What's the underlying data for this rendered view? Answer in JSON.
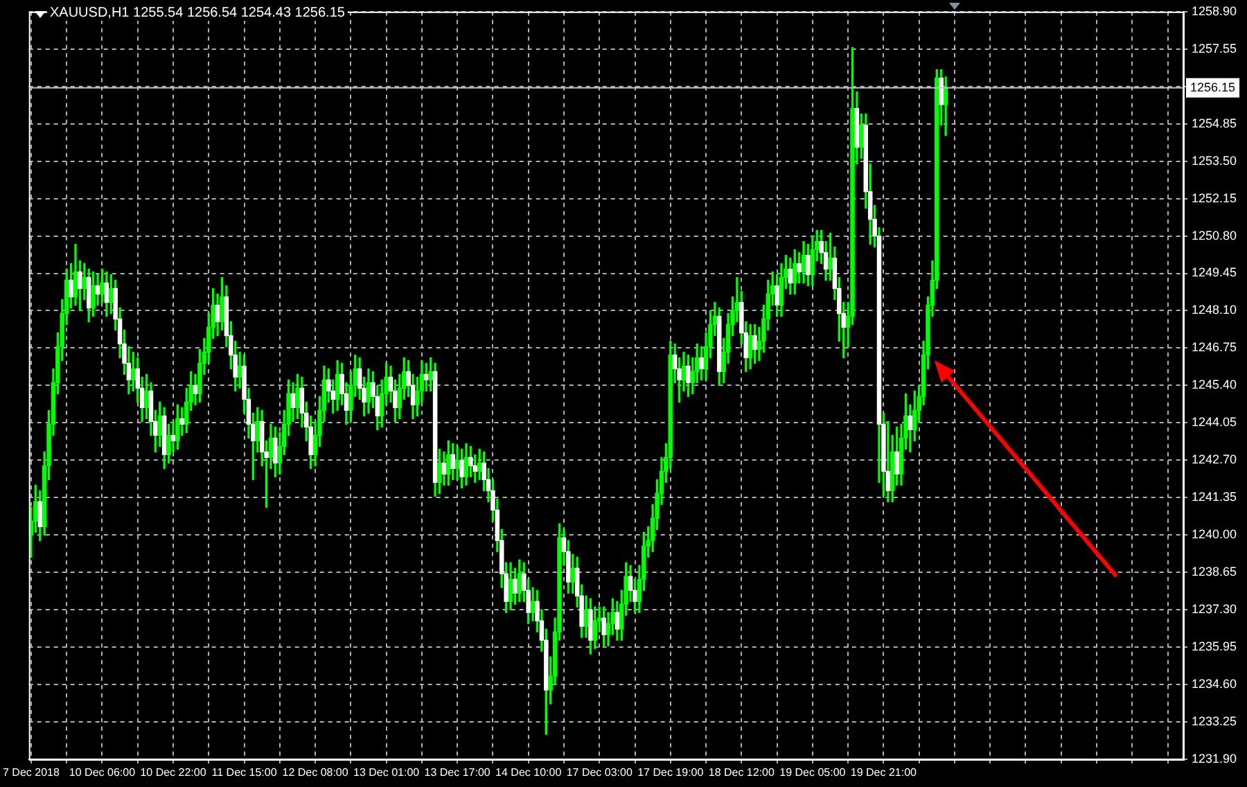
{
  "chart_data": {
    "type": "candlestick",
    "title": "XAUUSD,H1 1255.54 1256.54 1254.43 1256.15",
    "color": "#00ff00",
    "grid": true,
    "categories": [
      "7 Dec 2018",
      null,
      null,
      null,
      null,
      null,
      null,
      null,
      null,
      null,
      null,
      null,
      null,
      null,
      null,
      null,
      "10 Dec 06:00",
      null,
      null,
      null,
      null,
      null,
      null,
      null,
      null,
      null,
      null,
      null,
      null,
      null,
      null,
      null,
      "10 Dec 22:00",
      null,
      null,
      null,
      null,
      null,
      null,
      null,
      null,
      null,
      null,
      null,
      null,
      null,
      null,
      null,
      "11 Dec 15:00",
      null,
      null,
      null,
      null,
      null,
      null,
      null,
      null,
      null,
      null,
      null,
      null,
      null,
      null,
      null,
      "12 Dec 08:00",
      null,
      null,
      null,
      null,
      null,
      null,
      null,
      null,
      null,
      null,
      null,
      null,
      null,
      null,
      null,
      "13 Dec 01:00",
      null,
      null,
      null,
      null,
      null,
      null,
      null,
      null,
      null,
      null,
      null,
      null,
      null,
      null,
      null,
      "13 Dec 17:00",
      null,
      null,
      null,
      null,
      null,
      null,
      null,
      null,
      null,
      null,
      null,
      null,
      null,
      null,
      null,
      "14 Dec 10:00",
      null,
      null,
      null,
      null,
      null,
      null,
      null,
      null,
      null,
      null,
      null,
      null,
      null,
      null,
      null,
      "17 Dec 03:00",
      null,
      null,
      null,
      null,
      null,
      null,
      null,
      null,
      null,
      null,
      null,
      null,
      null,
      null,
      null,
      "17 Dec 19:00",
      null,
      null,
      null,
      null,
      null,
      null,
      null,
      null,
      null,
      null,
      null,
      null,
      null,
      null,
      null,
      "18 Dec 12:00",
      null,
      null,
      null,
      null,
      null,
      null,
      null,
      null,
      null,
      null,
      null,
      null,
      null,
      null,
      null,
      "19 Dec 05:00",
      null,
      null,
      null,
      null,
      null,
      null,
      null,
      null,
      null,
      null,
      null,
      null,
      null,
      null,
      null,
      "19 Dec 21:00",
      null,
      null,
      null,
      null,
      null,
      null,
      null,
      null,
      null,
      null,
      null,
      null,
      null,
      null,
      null,
      null,
      null,
      null,
      null,
      null,
      null,
      null,
      null,
      null,
      null,
      null,
      null,
      null,
      null,
      null,
      null,
      null,
      null,
      null,
      null,
      null,
      null,
      null,
      null,
      null,
      null,
      null,
      null,
      null,
      null,
      null,
      null,
      null,
      null,
      null,
      null,
      null,
      null,
      null,
      null,
      null,
      null,
      null,
      null,
      null,
      null,
      null,
      null,
      null,
      null,
      null,
      null
    ],
    "ohlc": [
      [
        1240.0,
        1241.0,
        1239.2,
        1240.5
      ],
      [
        1240.5,
        1241.8,
        1240.1,
        1241.2
      ],
      [
        1241.2,
        1241.6,
        1239.8,
        1240.3
      ],
      [
        1240.3,
        1243.0,
        1240.0,
        1242.5
      ],
      [
        1242.5,
        1244.5,
        1242.0,
        1244.0
      ],
      [
        1244.0,
        1246.0,
        1243.6,
        1245.5
      ],
      [
        1245.5,
        1247.3,
        1245.1,
        1246.8
      ],
      [
        1246.8,
        1248.5,
        1246.3,
        1248.0
      ],
      [
        1248.0,
        1249.6,
        1247.6,
        1249.2
      ],
      [
        1249.2,
        1249.8,
        1248.2,
        1248.6
      ],
      [
        1248.6,
        1250.5,
        1248.3,
        1249.5
      ],
      [
        1249.5,
        1249.9,
        1248.1,
        1248.9
      ],
      [
        1248.9,
        1249.8,
        1248.5,
        1249.3
      ],
      [
        1249.3,
        1249.6,
        1247.7,
        1248.2
      ],
      [
        1248.2,
        1249.5,
        1247.9,
        1249.0
      ],
      [
        1249.0,
        1249.4,
        1248.3,
        1248.7
      ],
      [
        1248.7,
        1249.6,
        1248.4,
        1249.1
      ],
      [
        1249.1,
        1249.5,
        1247.9,
        1248.4
      ],
      [
        1248.4,
        1249.4,
        1248.0,
        1248.9
      ],
      [
        1248.9,
        1249.2,
        1247.4,
        1247.8
      ],
      [
        1247.8,
        1248.2,
        1246.4,
        1246.9
      ],
      [
        1246.9,
        1247.4,
        1245.8,
        1246.2
      ],
      [
        1246.2,
        1246.8,
        1245.1,
        1245.6
      ],
      [
        1245.6,
        1246.6,
        1245.2,
        1246.0
      ],
      [
        1246.0,
        1246.4,
        1244.8,
        1245.3
      ],
      [
        1245.3,
        1245.7,
        1244.1,
        1244.6
      ],
      [
        1244.6,
        1245.8,
        1244.2,
        1245.2
      ],
      [
        1245.2,
        1245.5,
        1243.6,
        1244.1
      ],
      [
        1244.1,
        1244.5,
        1243.0,
        1243.6
      ],
      [
        1243.6,
        1244.8,
        1243.2,
        1244.3
      ],
      [
        1244.3,
        1244.6,
        1242.4,
        1242.9
      ],
      [
        1242.9,
        1244.0,
        1242.6,
        1243.6
      ],
      [
        1243.6,
        1244.1,
        1243.0,
        1243.4
      ],
      [
        1243.4,
        1244.7,
        1243.1,
        1244.2
      ],
      [
        1244.2,
        1244.6,
        1243.6,
        1244.0
      ],
      [
        1244.0,
        1245.3,
        1243.7,
        1244.8
      ],
      [
        1244.8,
        1245.9,
        1244.5,
        1245.4
      ],
      [
        1245.4,
        1245.8,
        1244.7,
        1245.1
      ],
      [
        1245.1,
        1246.7,
        1244.8,
        1246.2
      ],
      [
        1246.2,
        1247.1,
        1245.8,
        1246.6
      ],
      [
        1246.6,
        1248.0,
        1246.2,
        1247.5
      ],
      [
        1247.5,
        1248.9,
        1247.1,
        1248.3
      ],
      [
        1248.3,
        1248.7,
        1247.2,
        1247.7
      ],
      [
        1247.7,
        1249.3,
        1247.4,
        1248.6
      ],
      [
        1248.6,
        1249.0,
        1246.8,
        1247.2
      ],
      [
        1247.2,
        1247.7,
        1246.0,
        1246.5
      ],
      [
        1246.5,
        1247.0,
        1245.2,
        1245.7
      ],
      [
        1245.7,
        1246.6,
        1245.3,
        1246.1
      ],
      [
        1246.1,
        1246.5,
        1244.4,
        1244.9
      ],
      [
        1244.9,
        1245.3,
        1243.5,
        1244.0
      ],
      [
        1244.0,
        1244.4,
        1242.0,
        1243.4
      ],
      [
        1243.4,
        1244.6,
        1243.0,
        1244.1
      ],
      [
        1244.1,
        1244.5,
        1242.5,
        1243.0
      ],
      [
        1243.0,
        1243.4,
        1241.0,
        1242.8
      ],
      [
        1242.8,
        1244.0,
        1242.4,
        1243.5
      ],
      [
        1243.5,
        1243.9,
        1242.1,
        1242.6
      ],
      [
        1242.6,
        1243.7,
        1242.2,
        1243.2
      ],
      [
        1243.2,
        1244.5,
        1242.9,
        1244.0
      ],
      [
        1244.0,
        1245.6,
        1243.6,
        1245.1
      ],
      [
        1245.1,
        1245.5,
        1244.1,
        1244.6
      ],
      [
        1244.6,
        1245.8,
        1244.2,
        1245.3
      ],
      [
        1245.3,
        1245.7,
        1243.9,
        1244.4
      ],
      [
        1244.4,
        1244.8,
        1243.4,
        1243.9
      ],
      [
        1243.9,
        1244.3,
        1242.4,
        1242.9
      ],
      [
        1242.9,
        1244.1,
        1242.5,
        1243.6
      ],
      [
        1243.6,
        1245.0,
        1243.2,
        1244.5
      ],
      [
        1244.5,
        1246.1,
        1244.1,
        1245.6
      ],
      [
        1245.6,
        1246.0,
        1244.8,
        1245.2
      ],
      [
        1245.2,
        1245.6,
        1244.4,
        1244.9
      ],
      [
        1244.9,
        1246.3,
        1244.5,
        1245.8
      ],
      [
        1245.8,
        1246.2,
        1244.7,
        1245.1
      ],
      [
        1245.1,
        1245.5,
        1244.0,
        1244.5
      ],
      [
        1244.5,
        1245.9,
        1244.1,
        1245.4
      ],
      [
        1245.4,
        1246.5,
        1245.0,
        1246.0
      ],
      [
        1246.0,
        1246.4,
        1244.9,
        1245.3
      ],
      [
        1245.3,
        1245.7,
        1244.3,
        1244.8
      ],
      [
        1244.8,
        1246.0,
        1244.4,
        1245.5
      ],
      [
        1245.5,
        1245.9,
        1244.6,
        1245.0
      ],
      [
        1245.0,
        1245.4,
        1243.8,
        1244.3
      ],
      [
        1244.3,
        1245.6,
        1243.9,
        1245.1
      ],
      [
        1245.1,
        1246.2,
        1244.7,
        1245.7
      ],
      [
        1245.7,
        1246.1,
        1244.8,
        1245.2
      ],
      [
        1245.2,
        1245.6,
        1244.1,
        1244.6
      ],
      [
        1244.6,
        1245.8,
        1244.2,
        1245.3
      ],
      [
        1245.3,
        1246.4,
        1244.9,
        1245.9
      ],
      [
        1245.9,
        1246.3,
        1245.0,
        1245.4
      ],
      [
        1245.4,
        1245.8,
        1244.2,
        1244.7
      ],
      [
        1244.7,
        1245.7,
        1244.3,
        1245.2
      ],
      [
        1245.2,
        1246.3,
        1244.8,
        1245.8
      ],
      [
        1245.8,
        1246.2,
        1245.2,
        1245.6
      ],
      [
        1245.6,
        1246.4,
        1245.2,
        1245.9
      ],
      [
        1245.9,
        1246.2,
        1241.4,
        1241.9
      ],
      [
        1241.9,
        1243.1,
        1241.5,
        1242.6
      ],
      [
        1242.6,
        1243.0,
        1241.8,
        1242.2
      ],
      [
        1242.2,
        1243.4,
        1241.8,
        1242.9
      ],
      [
        1242.9,
        1243.3,
        1242.0,
        1242.4
      ],
      [
        1242.4,
        1243.2,
        1242.0,
        1242.7
      ],
      [
        1242.7,
        1243.1,
        1241.7,
        1242.1
      ],
      [
        1242.1,
        1243.3,
        1241.8,
        1242.8
      ],
      [
        1242.8,
        1243.2,
        1242.1,
        1242.5
      ],
      [
        1242.5,
        1242.9,
        1241.9,
        1242.3
      ],
      [
        1242.3,
        1243.1,
        1242.0,
        1242.6
      ],
      [
        1242.6,
        1243.0,
        1241.6,
        1242.0
      ],
      [
        1242.0,
        1242.4,
        1241.2,
        1241.6
      ],
      [
        1241.6,
        1242.0,
        1240.5,
        1240.9
      ],
      [
        1240.9,
        1241.3,
        1239.4,
        1239.8
      ],
      [
        1239.8,
        1240.2,
        1238.1,
        1238.6
      ],
      [
        1238.6,
        1239.0,
        1237.2,
        1237.6
      ],
      [
        1237.6,
        1239.0,
        1237.3,
        1238.4
      ],
      [
        1238.4,
        1238.8,
        1237.5,
        1237.9
      ],
      [
        1237.9,
        1239.1,
        1237.6,
        1238.6
      ],
      [
        1238.6,
        1239.0,
        1237.6,
        1238.0
      ],
      [
        1238.0,
        1238.4,
        1236.8,
        1237.2
      ],
      [
        1237.2,
        1238.1,
        1236.9,
        1237.6
      ],
      [
        1237.6,
        1238.0,
        1236.5,
        1236.9
      ],
      [
        1236.9,
        1237.3,
        1235.8,
        1236.2
      ],
      [
        1236.2,
        1236.6,
        1232.8,
        1234.4
      ],
      [
        1234.4,
        1235.6,
        1233.9,
        1234.9
      ],
      [
        1234.9,
        1237.0,
        1234.6,
        1236.5
      ],
      [
        1236.5,
        1240.4,
        1236.2,
        1239.9
      ],
      [
        1239.9,
        1240.2,
        1238.9,
        1239.4
      ],
      [
        1239.4,
        1239.8,
        1237.9,
        1238.3
      ],
      [
        1238.3,
        1239.3,
        1237.9,
        1238.8
      ],
      [
        1238.8,
        1239.2,
        1237.4,
        1237.8
      ],
      [
        1237.8,
        1238.2,
        1236.3,
        1236.7
      ],
      [
        1236.7,
        1237.8,
        1236.3,
        1237.3
      ],
      [
        1237.3,
        1237.7,
        1235.7,
        1236.2
      ],
      [
        1236.2,
        1237.4,
        1235.9,
        1236.9
      ],
      [
        1236.9,
        1237.4,
        1236.5,
        1237.0
      ],
      [
        1237.0,
        1237.4,
        1236.0,
        1236.4
      ],
      [
        1236.4,
        1237.2,
        1236.0,
        1236.8
      ],
      [
        1236.8,
        1237.7,
        1236.4,
        1237.2
      ],
      [
        1237.2,
        1237.6,
        1236.2,
        1236.6
      ],
      [
        1236.6,
        1238.0,
        1236.2,
        1237.5
      ],
      [
        1237.5,
        1239.0,
        1237.1,
        1238.5
      ],
      [
        1238.5,
        1238.9,
        1237.6,
        1238.0
      ],
      [
        1238.0,
        1238.4,
        1237.2,
        1237.6
      ],
      [
        1237.6,
        1238.9,
        1237.2,
        1238.4
      ],
      [
        1238.4,
        1240.1,
        1238.0,
        1239.6
      ],
      [
        1239.6,
        1240.3,
        1239.2,
        1239.8
      ],
      [
        1239.8,
        1241.1,
        1239.4,
        1240.6
      ],
      [
        1240.6,
        1242.0,
        1240.2,
        1241.5
      ],
      [
        1241.5,
        1242.8,
        1241.1,
        1242.3
      ],
      [
        1242.3,
        1243.3,
        1241.9,
        1242.8
      ],
      [
        1242.8,
        1247.0,
        1242.4,
        1246.5
      ],
      [
        1246.5,
        1246.9,
        1245.5,
        1246.0
      ],
      [
        1246.0,
        1246.4,
        1244.8,
        1245.6
      ],
      [
        1245.6,
        1246.6,
        1245.2,
        1246.1
      ],
      [
        1246.1,
        1246.5,
        1245.0,
        1245.5
      ],
      [
        1245.5,
        1246.4,
        1245.1,
        1245.9
      ],
      [
        1245.9,
        1246.9,
        1245.5,
        1246.4
      ],
      [
        1246.4,
        1246.8,
        1245.6,
        1246.0
      ],
      [
        1246.0,
        1247.3,
        1245.6,
        1246.8
      ],
      [
        1246.8,
        1248.1,
        1246.4,
        1247.6
      ],
      [
        1247.6,
        1248.4,
        1247.2,
        1247.9
      ],
      [
        1247.9,
        1248.2,
        1245.4,
        1245.9
      ],
      [
        1245.9,
        1247.1,
        1245.5,
        1246.6
      ],
      [
        1246.6,
        1248.0,
        1246.2,
        1247.6
      ],
      [
        1247.6,
        1248.6,
        1247.2,
        1248.1
      ],
      [
        1248.1,
        1249.3,
        1247.7,
        1248.4
      ],
      [
        1248.4,
        1248.8,
        1246.9,
        1247.3
      ],
      [
        1247.3,
        1247.7,
        1245.9,
        1246.4
      ],
      [
        1246.4,
        1247.6,
        1246.0,
        1247.2
      ],
      [
        1247.2,
        1247.6,
        1246.2,
        1246.7
      ],
      [
        1246.7,
        1247.5,
        1246.3,
        1247.0
      ],
      [
        1247.0,
        1248.3,
        1246.6,
        1247.8
      ],
      [
        1247.8,
        1249.2,
        1247.4,
        1248.7
      ],
      [
        1248.7,
        1249.5,
        1248.3,
        1249.0
      ],
      [
        1249.0,
        1249.4,
        1247.9,
        1248.3
      ],
      [
        1248.3,
        1249.8,
        1247.9,
        1249.3
      ],
      [
        1249.3,
        1250.1,
        1248.9,
        1249.6
      ],
      [
        1249.6,
        1250.0,
        1248.7,
        1249.1
      ],
      [
        1249.1,
        1250.3,
        1248.7,
        1249.8
      ],
      [
        1249.8,
        1250.2,
        1249.1,
        1249.5
      ],
      [
        1249.5,
        1250.6,
        1249.1,
        1250.1
      ],
      [
        1250.1,
        1250.5,
        1249.0,
        1249.4
      ],
      [
        1249.4,
        1250.8,
        1249.0,
        1250.3
      ],
      [
        1250.3,
        1251.0,
        1249.9,
        1250.6
      ],
      [
        1250.6,
        1251.0,
        1249.8,
        1250.2
      ],
      [
        1250.2,
        1250.6,
        1249.2,
        1249.6
      ],
      [
        1249.6,
        1250.9,
        1249.2,
        1250.0
      ],
      [
        1250.0,
        1250.4,
        1248.5,
        1248.9
      ],
      [
        1248.9,
        1249.3,
        1247.0,
        1248.0
      ],
      [
        1248.0,
        1248.4,
        1246.4,
        1247.5
      ],
      [
        1247.5,
        1248.4,
        1246.8,
        1247.9
      ],
      [
        1247.9,
        1257.6,
        1247.6,
        1255.4
      ],
      [
        1255.4,
        1256.0,
        1253.4,
        1254.0
      ],
      [
        1254.0,
        1255.2,
        1253.6,
        1254.8
      ],
      [
        1254.8,
        1255.2,
        1251.8,
        1252.4
      ],
      [
        1252.4,
        1253.4,
        1250.5,
        1251.4
      ],
      [
        1251.4,
        1251.9,
        1250.4,
        1250.8
      ],
      [
        1250.8,
        1251.1,
        1241.9,
        1244.0
      ],
      [
        1244.0,
        1244.4,
        1241.4,
        1242.3
      ],
      [
        1242.3,
        1244.1,
        1241.2,
        1241.6
      ],
      [
        1241.6,
        1243.6,
        1241.2,
        1243.0
      ],
      [
        1243.0,
        1243.9,
        1241.8,
        1242.2
      ],
      [
        1242.2,
        1244.0,
        1241.8,
        1243.5
      ],
      [
        1243.5,
        1245.1,
        1243.1,
        1244.3
      ],
      [
        1244.3,
        1244.7,
        1243.0,
        1243.8
      ],
      [
        1243.8,
        1245.2,
        1243.4,
        1244.5
      ],
      [
        1244.5,
        1245.4,
        1244.1,
        1245.0
      ],
      [
        1245.0,
        1247.0,
        1244.7,
        1246.5
      ],
      [
        1246.5,
        1248.6,
        1246.0,
        1248.3
      ],
      [
        1248.3,
        1249.9,
        1247.9,
        1249.2
      ],
      [
        1249.2,
        1256.8,
        1248.9,
        1256.5
      ],
      [
        1256.5,
        1256.8,
        1254.8,
        1255.54
      ],
      [
        1255.54,
        1256.54,
        1254.43,
        1256.15
      ],
      null,
      null,
      null,
      null,
      null,
      null,
      null,
      null,
      null,
      null,
      null,
      null,
      null,
      null,
      null,
      null,
      null,
      null,
      null,
      null,
      null,
      null,
      null,
      null,
      null,
      null,
      null,
      null,
      null,
      null,
      null,
      null,
      null,
      null,
      null,
      null,
      null,
      null,
      null,
      null,
      null,
      null,
      null,
      null,
      null,
      null,
      null,
      null,
      null,
      null,
      null,
      null,
      null
    ],
    "colors": [
      "#00ff00",
      "#00ff00",
      "#ffffff",
      "#00ff00",
      "#00ff00",
      "#00ff00",
      "#00ff00",
      "#00ff00",
      "#00ff00",
      "#ffffff",
      "#00ff00",
      "#ffffff",
      "#00ff00",
      "#ffffff",
      "#00ff00",
      "#ffffff",
      "#00ff00",
      "#ffffff",
      "#00ff00",
      "#ffffff",
      "#ffffff",
      "#ffffff",
      "#ffffff",
      "#00ff00",
      "#ffffff",
      "#ffffff",
      "#00ff00",
      "#ffffff",
      "#ffffff",
      "#00ff00",
      "#ffffff",
      "#00ff00",
      "#ffffff",
      "#00ff00",
      "#ffffff",
      "#00ff00",
      "#00ff00",
      "#ffffff",
      "#00ff00",
      "#00ff00",
      "#00ff00",
      "#00ff00",
      "#ffffff",
      "#00ff00",
      "#ffffff",
      "#ffffff",
      "#ffffff",
      "#00ff00",
      "#ffffff",
      "#ffffff",
      "#ffffff",
      "#00ff00",
      "#ffffff",
      "#ffffff",
      "#00ff00",
      "#ffffff",
      "#00ff00",
      "#00ff00",
      "#00ff00",
      "#ffffff",
      "#00ff00",
      "#ffffff",
      "#ffffff",
      "#ffffff",
      "#00ff00",
      "#00ff00",
      "#00ff00",
      "#ffffff",
      "#ffffff",
      "#00ff00",
      "#ffffff",
      "#ffffff",
      "#00ff00",
      "#00ff00",
      "#ffffff",
      "#ffffff",
      "#00ff00",
      "#ffffff",
      "#ffffff",
      "#00ff00",
      "#00ff00",
      "#ffffff",
      "#ffffff",
      "#00ff00",
      "#00ff00",
      "#ffffff",
      "#ffffff",
      "#00ff00",
      "#00ff00",
      "#ffffff",
      "#00ff00",
      "#ffffff",
      "#00ff00",
      "#ffffff",
      "#00ff00",
      "#ffffff",
      "#00ff00",
      "#ffffff",
      "#00ff00",
      "#ffffff",
      "#ffffff",
      "#00ff00",
      "#ffffff",
      "#ffffff",
      "#ffffff",
      "#ffffff",
      "#ffffff",
      "#ffffff",
      "#00ff00",
      "#ffffff",
      "#00ff00",
      "#ffffff",
      "#ffffff",
      "#00ff00",
      "#ffffff",
      "#ffffff",
      "#ffffff",
      "#00ff00",
      "#00ff00",
      "#00ff00",
      "#ffffff",
      "#ffffff",
      "#00ff00",
      "#ffffff",
      "#ffffff",
      "#00ff00",
      "#ffffff",
      "#00ff00",
      "#00ff00",
      "#ffffff",
      "#00ff00",
      "#00ff00",
      "#ffffff",
      "#00ff00",
      "#00ff00",
      "#ffffff",
      "#ffffff",
      "#00ff00",
      "#00ff00",
      "#00ff00",
      "#00ff00",
      "#00ff00",
      "#00ff00",
      "#00ff00",
      "#00ff00",
      "#ffffff",
      "#ffffff",
      "#00ff00",
      "#ffffff",
      "#00ff00",
      "#00ff00",
      "#ffffff",
      "#00ff00",
      "#00ff00",
      "#00ff00",
      "#ffffff",
      "#00ff00",
      "#00ff00",
      "#00ff00",
      "#00ff00",
      "#ffffff",
      "#ffffff",
      "#00ff00",
      "#ffffff",
      "#00ff00",
      "#00ff00",
      "#00ff00",
      "#00ff00",
      "#ffffff",
      "#00ff00",
      "#00ff00",
      "#ffffff",
      "#00ff00",
      "#ffffff",
      "#00ff00",
      "#ffffff",
      "#00ff00",
      "#00ff00",
      "#ffffff",
      "#ffffff",
      "#00ff00",
      "#ffffff",
      "#ffffff",
      "#ffffff",
      "#00ff00",
      "#00ff00",
      "#ffffff",
      "#00ff00",
      "#ffffff",
      "#ffffff",
      "#ffffff",
      "#ffffff",
      "#ffffff",
      "#ffffff",
      "#00ff00",
      "#ffffff",
      "#00ff00",
      "#00ff00",
      "#ffffff",
      "#00ff00",
      "#00ff00",
      "#00ff00",
      "#00ff00",
      "#00ff00",
      "#00ff00",
      "#ffffff",
      "#00ff00",
      null,
      null,
      null,
      null,
      null,
      null,
      null,
      null,
      null,
      null,
      null,
      null,
      null,
      null,
      null,
      null,
      null,
      null,
      null,
      null,
      null,
      null,
      null,
      null,
      null,
      null,
      null,
      null,
      null,
      null,
      null,
      null,
      null,
      null,
      null,
      null,
      null,
      null,
      null,
      null,
      null,
      null,
      null,
      null,
      null,
      null,
      null,
      null,
      null,
      null,
      null,
      null,
      null
    ],
    "ylim": [
      1231.9,
      1258.9
    ],
    "yticks": [
      {
        "value": 1231.9,
        "label": "1231.90"
      },
      1233.25,
      {
        "value": 1234.6,
        "label": "1234.60"
      },
      1235.95,
      {
        "value": 1237.3,
        "label": "1237.30"
      },
      1238.65,
      {
        "value": 1240,
        "label": "1240.00"
      },
      1241.35,
      {
        "value": 1242.7,
        "label": "1242.70"
      },
      1244.05,
      {
        "value": 1245.4,
        "label": "1245.40"
      },
      1246.75,
      {
        "value": 1248.1,
        "label": "1248.10"
      },
      1249.45,
      {
        "value": 1250.8,
        "label": "1250.80"
      },
      1252.15,
      {
        "value": 1253.5,
        "label": "1253.50"
      },
      1254.85,
      {
        "value": 1256.2,
        "label": null
      },
      1257.55,
      {
        "value": 1258.9,
        "label": "1258.90"
      }
    ],
    "ref_lines": [
      {
        "axis": "y",
        "value": 1256.15,
        "label": "1256.15",
        "color": "#c0c0c0"
      }
    ]
  }
}
